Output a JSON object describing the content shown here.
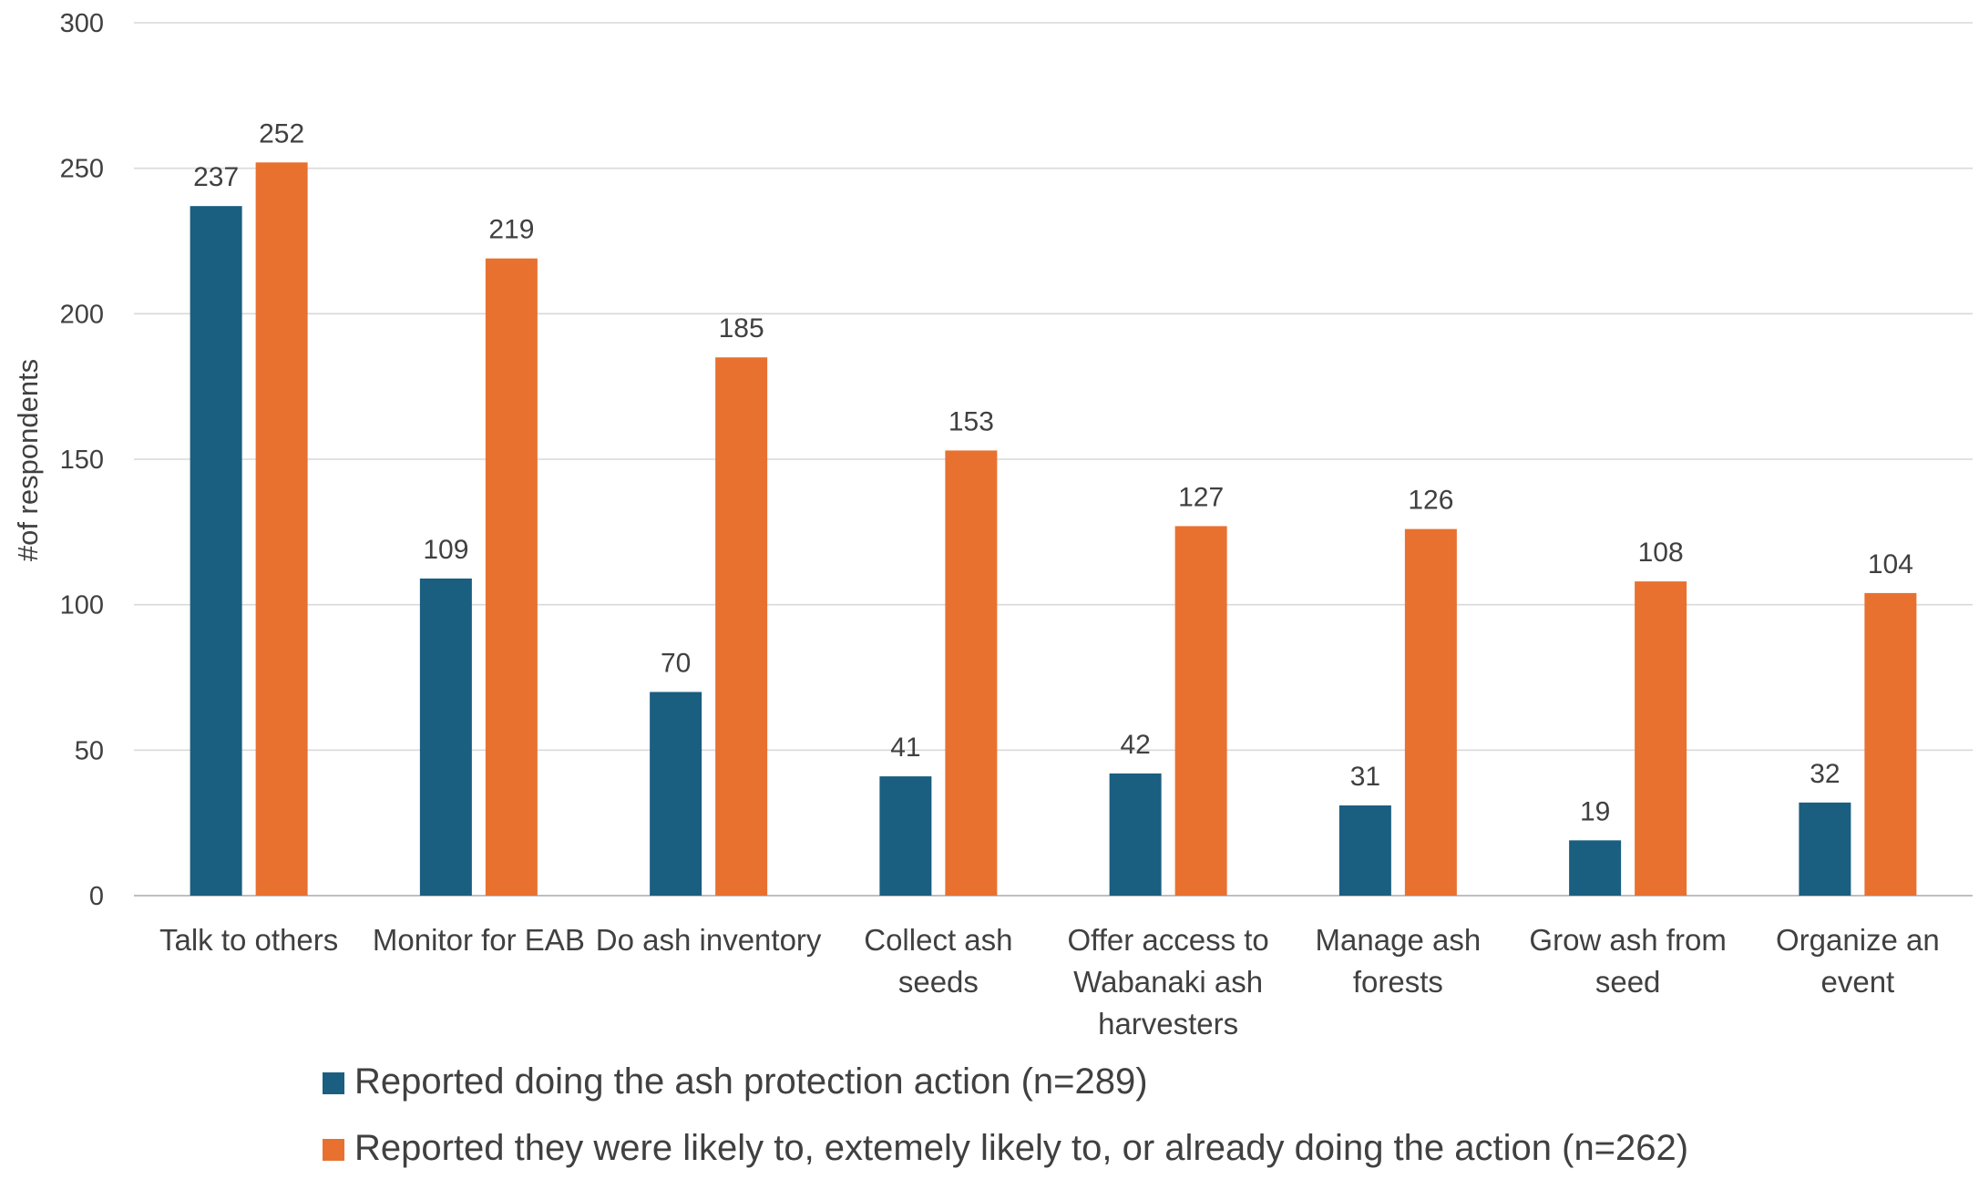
{
  "chart_data": {
    "type": "bar",
    "title": "",
    "xlabel": "",
    "ylabel": "#of respondents",
    "ylim": [
      0,
      300
    ],
    "yticks": [
      0,
      50,
      100,
      150,
      200,
      250,
      300
    ],
    "grid": true,
    "legend_position": "bottom",
    "categories": [
      [
        "Talk to others"
      ],
      [
        "Monitor for EAB"
      ],
      [
        "Do ash inventory"
      ],
      [
        "Collect ash",
        "seeds"
      ],
      [
        "Offer access to",
        "Wabanaki ash",
        "harvesters"
      ],
      [
        "Manage ash",
        "forests"
      ],
      [
        "Grow ash from",
        "seed"
      ],
      [
        "Organize an",
        "event"
      ]
    ],
    "series": [
      {
        "name": "Reported doing the ash protection action (n=289)",
        "color": "#1a5e80",
        "values": [
          237,
          109,
          70,
          41,
          42,
          31,
          19,
          32
        ]
      },
      {
        "name": "Reported they were likely to, extemely likely to, or already doing the action (n=262)",
        "color": "#e87130",
        "values": [
          252,
          219,
          185,
          153,
          127,
          126,
          108,
          104
        ]
      }
    ]
  }
}
